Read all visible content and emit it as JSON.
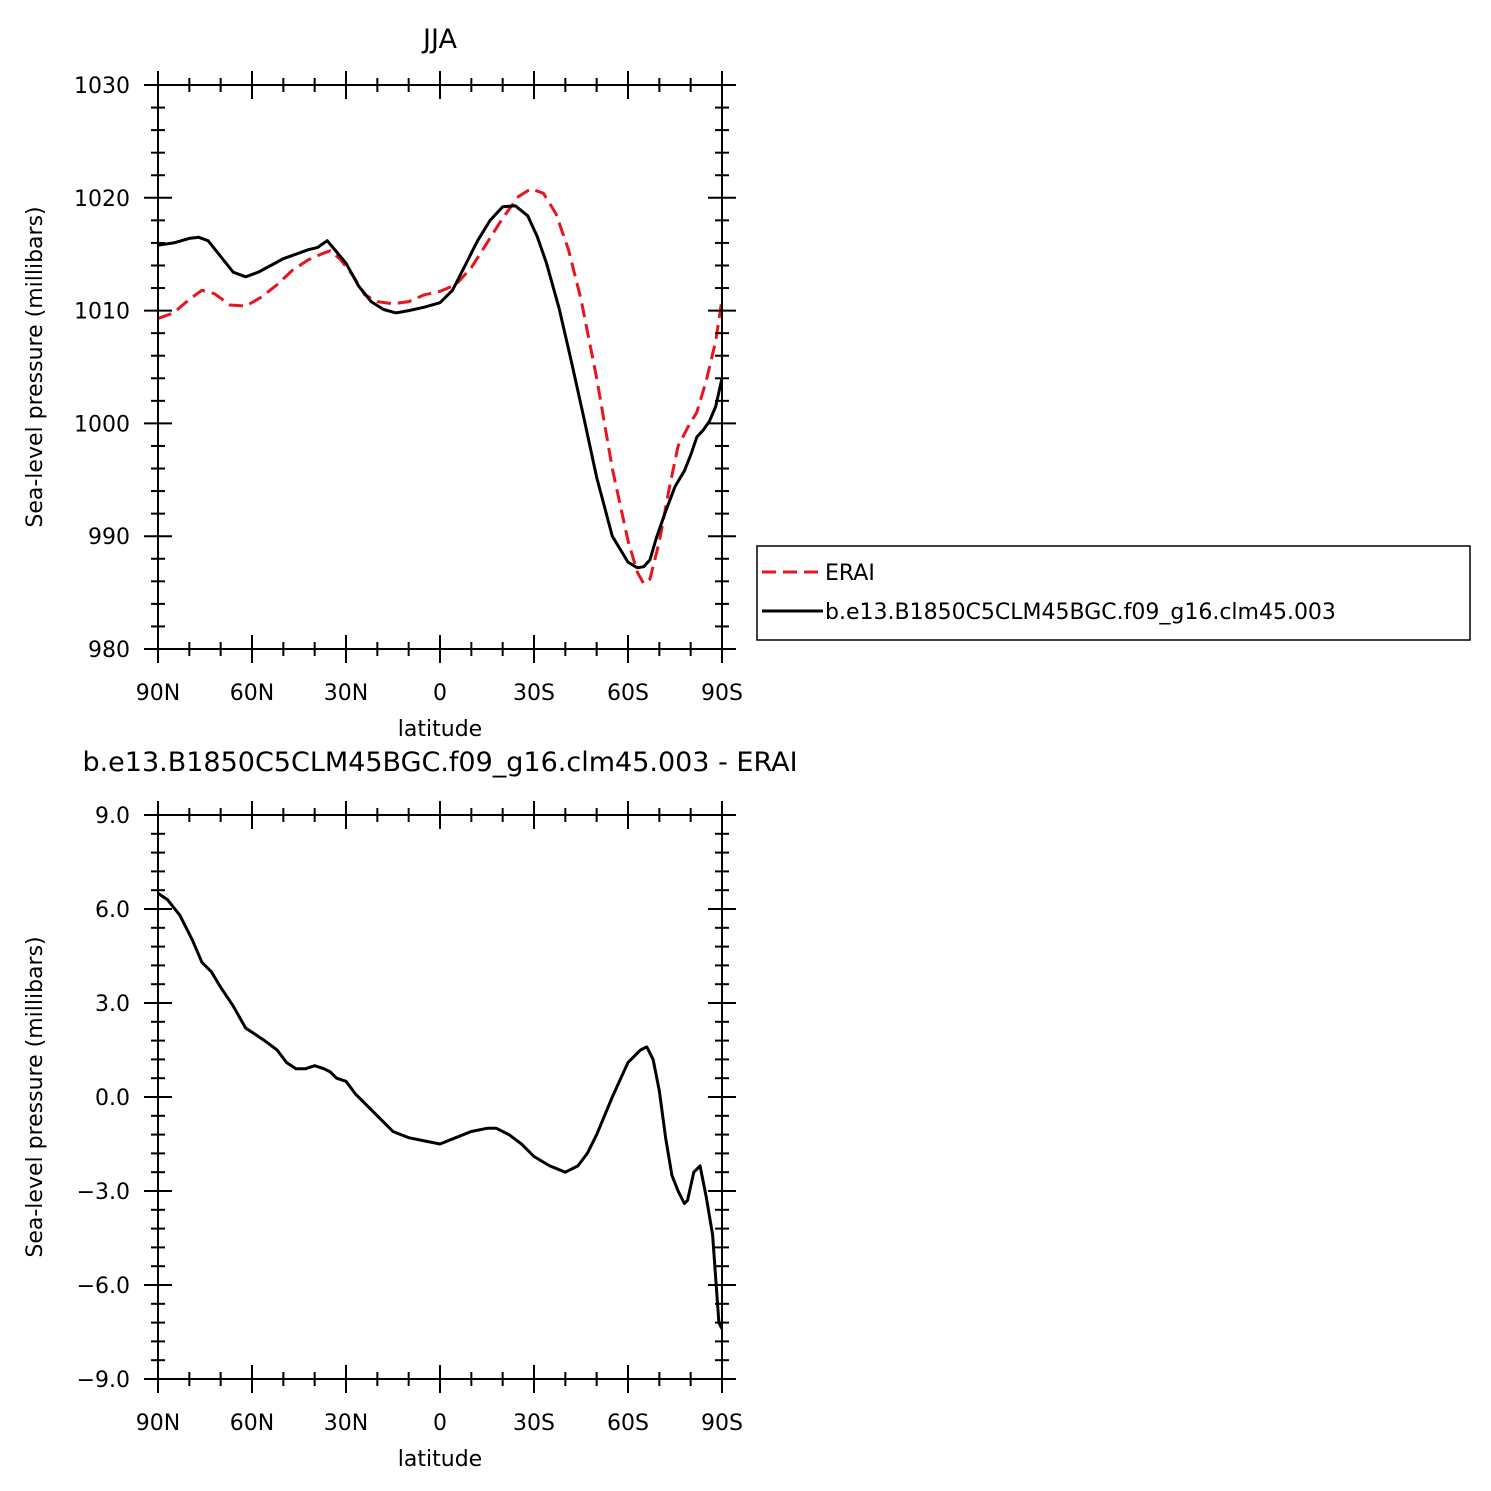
{
  "chart_data": [
    {
      "type": "line",
      "title": "JJA",
      "xlabel": "latitude",
      "ylabel": "Sea-level pressure (millibars)",
      "xlim": [
        90,
        -90
      ],
      "ylim": [
        980,
        1030
      ],
      "xticks": [
        90,
        60,
        30,
        0,
        -30,
        -60,
        -90
      ],
      "xtick_labels": [
        "90N",
        "60N",
        "30N",
        "0",
        "30S",
        "60S",
        "90S"
      ],
      "yticks": [
        980,
        990,
        1000,
        1010,
        1020,
        1030
      ],
      "ytick_labels": [
        "980",
        "990",
        "1000",
        "1010",
        "1020",
        "1030"
      ],
      "legend": "right",
      "series": [
        {
          "name": "ERAI",
          "color": "#e8141e",
          "dash": "dashed",
          "x": [
            90,
            85,
            80,
            76,
            72,
            67,
            62,
            57,
            52,
            47,
            42,
            38,
            35,
            32,
            28,
            24,
            20,
            15,
            10,
            5,
            0,
            -5,
            -10,
            -15,
            -20,
            -25,
            -29,
            -33,
            -37,
            -41,
            -45,
            -50,
            -55,
            -60,
            -63,
            -65,
            -67,
            -70,
            -73,
            -76,
            -79,
            -82,
            -85,
            -88,
            -90
          ],
          "y": [
            1009.3,
            1009.8,
            1011.0,
            1011.8,
            1011.5,
            1010.5,
            1010.4,
            1011.2,
            1012.3,
            1013.6,
            1014.5,
            1015.0,
            1015.3,
            1014.6,
            1013.2,
            1011.4,
            1010.8,
            1010.6,
            1010.8,
            1011.4,
            1011.7,
            1012.3,
            1013.8,
            1016.0,
            1018.2,
            1020.1,
            1020.8,
            1020.4,
            1018.6,
            1015.4,
            1011.0,
            1004.0,
            996.0,
            989.6,
            986.8,
            985.8,
            986.2,
            989.5,
            994.0,
            998.0,
            999.6,
            1001.0,
            1003.8,
            1007.3,
            1011.0
          ]
        },
        {
          "name": "b.e13.B1850C5CLM45BGC.f09_g16.clm45.003",
          "color": "#000000",
          "dash": "solid",
          "x": [
            90,
            85,
            80,
            77,
            74,
            70,
            66,
            62,
            58,
            54,
            50,
            46,
            42,
            39,
            36,
            33,
            30,
            26,
            22,
            18,
            14,
            10,
            5,
            0,
            -4,
            -8,
            -12,
            -16,
            -20,
            -24,
            -28,
            -31,
            -34,
            -38,
            -42,
            -46,
            -50,
            -55,
            -60,
            -63,
            -65,
            -67,
            -69,
            -72,
            -75,
            -78,
            -80,
            -82,
            -84,
            -86,
            -88,
            -90
          ],
          "y": [
            1015.8,
            1016.0,
            1016.4,
            1016.5,
            1016.2,
            1014.8,
            1013.4,
            1013.0,
            1013.4,
            1014.0,
            1014.6,
            1015.0,
            1015.4,
            1015.6,
            1016.2,
            1015.2,
            1014.2,
            1012.2,
            1010.8,
            1010.1,
            1009.8,
            1010.0,
            1010.3,
            1010.7,
            1011.8,
            1014.0,
            1016.2,
            1018.0,
            1019.2,
            1019.3,
            1018.4,
            1016.6,
            1014.2,
            1010.2,
            1005.4,
            1000.4,
            995.2,
            990.0,
            987.7,
            987.2,
            987.3,
            987.9,
            989.8,
            992.2,
            994.4,
            995.8,
            997.2,
            998.8,
            999.4,
            1000.2,
            1001.5,
            1004.0
          ]
        }
      ]
    },
    {
      "type": "line",
      "title": "b.e13.B1850C5CLM45BGC.f09_g16.clm45.003 - ERAI",
      "xlabel": "latitude",
      "ylabel": "Sea-level pressure (millibars)",
      "xlim": [
        90,
        -90
      ],
      "ylim": [
        -9,
        9
      ],
      "xticks": [
        90,
        60,
        30,
        0,
        -30,
        -60,
        -90
      ],
      "xtick_labels": [
        "90N",
        "60N",
        "30N",
        "0",
        "30S",
        "60S",
        "90S"
      ],
      "yticks": [
        -9,
        -6,
        -3,
        0,
        3,
        6,
        9
      ],
      "ytick_labels": [
        "−9.0",
        "−6.0",
        "−3.0",
        "0.0",
        "3.0",
        "6.0",
        "9.0"
      ],
      "series": [
        {
          "name": "",
          "color": "#000000",
          "dash": "solid",
          "x": [
            90,
            87,
            83,
            79,
            76,
            73,
            70,
            66,
            62,
            59,
            56,
            52,
            49,
            46,
            43,
            40,
            37,
            35,
            33,
            30,
            27,
            24,
            20,
            15,
            10,
            5,
            0,
            -5,
            -10,
            -15,
            -18,
            -22,
            -26,
            -30,
            -35,
            -40,
            -44,
            -47,
            -50,
            -55,
            -60,
            -64,
            -66,
            -68,
            -70,
            -72,
            -74,
            -76,
            -78,
            -79,
            -81,
            -83,
            -85,
            -87,
            -89,
            -90
          ],
          "y": [
            6.5,
            6.3,
            5.8,
            5.0,
            4.3,
            4.0,
            3.5,
            2.9,
            2.2,
            2.0,
            1.8,
            1.5,
            1.1,
            0.9,
            0.9,
            1.0,
            0.9,
            0.8,
            0.6,
            0.5,
            0.1,
            -0.2,
            -0.6,
            -1.1,
            -1.3,
            -1.4,
            -1.5,
            -1.3,
            -1.1,
            -1.0,
            -1.0,
            -1.2,
            -1.5,
            -1.9,
            -2.2,
            -2.4,
            -2.2,
            -1.8,
            -1.2,
            0.0,
            1.1,
            1.5,
            1.6,
            1.2,
            0.2,
            -1.3,
            -2.5,
            -3.0,
            -3.4,
            -3.3,
            -2.4,
            -2.2,
            -3.2,
            -4.4,
            -7.2,
            -7.4
          ]
        }
      ]
    }
  ]
}
